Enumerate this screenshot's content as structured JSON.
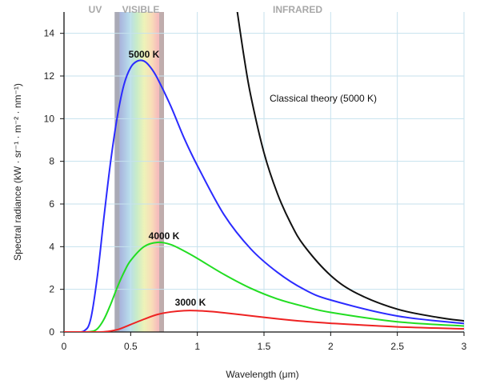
{
  "chart_data": {
    "type": "line",
    "xlabel": "Wavelength (μm)",
    "ylabel": "Spectral radiance (kW · sr⁻¹ · m⁻² · nm⁻¹)",
    "xlim": [
      0,
      3
    ],
    "ylim": [
      0,
      15
    ],
    "x_ticks": [
      "0",
      "0.5",
      "1",
      "1.5",
      "2",
      "2.5",
      "3"
    ],
    "y_ticks": [
      "0",
      "2",
      "4",
      "6",
      "8",
      "10",
      "12",
      "14"
    ],
    "grid": true,
    "regions": [
      {
        "name": "UV",
        "x_range": [
          0,
          0.38
        ]
      },
      {
        "name": "VISIBLE",
        "x_range": [
          0.38,
          0.75
        ]
      },
      {
        "name": "INFRARED",
        "x_range": [
          0.75,
          3
        ]
      }
    ],
    "series": [
      {
        "name": "5000 K",
        "temperature_K": 5000,
        "color": "#2b2bff",
        "peak": {
          "x": 0.58,
          "y": 12.7
        },
        "x": [
          0.15,
          0.2,
          0.25,
          0.3,
          0.35,
          0.4,
          0.45,
          0.5,
          0.55,
          0.6,
          0.65,
          0.7,
          0.8,
          0.9,
          1.0,
          1.2,
          1.4,
          1.6,
          1.8,
          2.0,
          2.5,
          3.0
        ],
        "y": [
          0.05,
          0.6,
          2.6,
          5.4,
          8.0,
          10.1,
          11.6,
          12.4,
          12.7,
          12.7,
          12.4,
          11.9,
          10.6,
          9.1,
          7.8,
          5.5,
          3.9,
          2.8,
          2.0,
          1.5,
          0.75,
          0.4
        ]
      },
      {
        "name": "4000 K",
        "temperature_K": 4000,
        "color": "#22dd22",
        "peak": {
          "x": 0.72,
          "y": 4.2
        },
        "x": [
          0.2,
          0.25,
          0.3,
          0.35,
          0.4,
          0.45,
          0.5,
          0.6,
          0.7,
          0.8,
          0.9,
          1.0,
          1.2,
          1.4,
          1.6,
          1.8,
          2.0,
          2.5,
          3.0
        ],
        "y": [
          0.02,
          0.15,
          0.6,
          1.3,
          2.1,
          2.8,
          3.35,
          4.0,
          4.2,
          4.1,
          3.8,
          3.45,
          2.7,
          2.05,
          1.55,
          1.2,
          0.92,
          0.48,
          0.28
        ]
      },
      {
        "name": "3000 K",
        "temperature_K": 3000,
        "color": "#ee2222",
        "peak": {
          "x": 0.97,
          "y": 1.0
        },
        "x": [
          0.3,
          0.4,
          0.5,
          0.6,
          0.7,
          0.8,
          0.9,
          1.0,
          1.1,
          1.2,
          1.4,
          1.6,
          1.8,
          2.0,
          2.5,
          3.0
        ],
        "y": [
          0.01,
          0.11,
          0.35,
          0.6,
          0.82,
          0.94,
          1.0,
          1.0,
          0.96,
          0.9,
          0.76,
          0.62,
          0.5,
          0.41,
          0.24,
          0.15
        ]
      },
      {
        "name": "Classical theory (5000 K)",
        "temperature_K": 5000,
        "color": "#111111",
        "x": [
          1.3,
          1.35,
          1.4,
          1.5,
          1.6,
          1.7,
          1.8,
          2.0,
          2.2,
          2.5,
          2.8,
          3.0
        ],
        "y": [
          15.0,
          12.9,
          11.1,
          8.4,
          6.5,
          5.1,
          4.05,
          2.65,
          1.8,
          1.07,
          0.69,
          0.52
        ]
      }
    ]
  }
}
